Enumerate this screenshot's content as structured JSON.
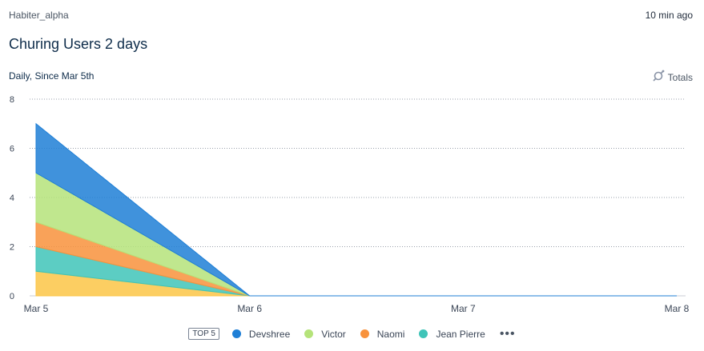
{
  "header": {
    "project": "Habiter_alpha",
    "updated": "10 min ago",
    "title": "Churing Users 2 days",
    "subtitle": "Daily, Since Mar 5th",
    "totals_label": "Totals",
    "totals_icon": "totals-icon"
  },
  "legend": {
    "top_label": "TOP 5",
    "more_label": "•••"
  },
  "chart_data": {
    "type": "area",
    "stacked": true,
    "categories": [
      "Mar 5",
      "Mar 6",
      "Mar 7",
      "Mar 8"
    ],
    "ylim": [
      0,
      8
    ],
    "yticks": [
      0,
      2,
      4,
      6,
      8
    ],
    "grid": true,
    "legend_position": "bottom",
    "series": [
      {
        "name": "",
        "color": "#fcc646",
        "values": [
          1,
          0,
          0,
          0
        ]
      },
      {
        "name": "Jean Pierre",
        "color": "#3fc4b8",
        "values": [
          1,
          0,
          0,
          0
        ]
      },
      {
        "name": "Naomi",
        "color": "#f8923c",
        "values": [
          1,
          0,
          0,
          0
        ]
      },
      {
        "name": "Victor",
        "color": "#b5e37a",
        "values": [
          2,
          0,
          0,
          0
        ]
      },
      {
        "name": "Devshree",
        "color": "#1f7fd6",
        "values": [
          2,
          0,
          0,
          0
        ]
      }
    ],
    "legend_order": [
      "Devshree",
      "Victor",
      "Naomi",
      "Jean Pierre"
    ]
  }
}
